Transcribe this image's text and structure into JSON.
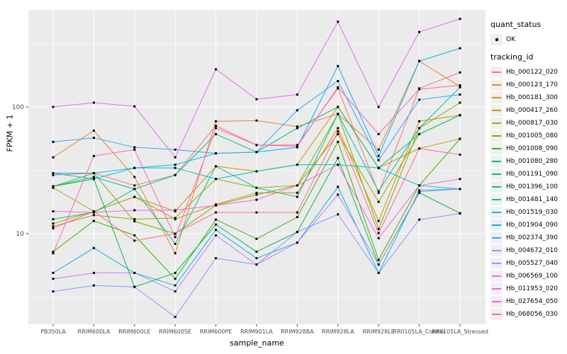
{
  "chart_data": {
    "type": "line",
    "title": "",
    "xlabel": "sample_name",
    "ylabel": "FPKM + 1",
    "y_scale": "log10",
    "y_major_ticks": [
      10,
      100
    ],
    "y_minor_gridlines": [
      3.162,
      31.62,
      316.2
    ],
    "grid": "white-on-grey",
    "legend_position": "right",
    "marker": "small-black-point",
    "categories": [
      "PB350LA",
      "RRIM600LA",
      "RRIM600LE",
      "RRIM600SE",
      "RRIM600PE",
      "RRIM901LA",
      "RRIM928BA",
      "RRIM928LA",
      "RRIM928LE",
      "RRII105LA_Control",
      "RRII105LA_Stressed"
    ],
    "series": [
      {
        "name": "Hb_000122_020",
        "color": "#F8766D",
        "values": [
          29,
          30,
          24,
          29,
          71,
          50,
          50,
          140,
          21,
          140,
          187
        ]
      },
      {
        "name": "Hb_000123_170",
        "color": "#E88526",
        "values": [
          40,
          65,
          28,
          7,
          77,
          78,
          70,
          88,
          46,
          230,
          145
        ]
      },
      {
        "name": "Hb_000181_300",
        "color": "#D89000",
        "values": [
          12,
          15,
          19.5,
          13,
          17,
          21,
          21,
          68,
          12.6,
          77,
          86
        ]
      },
      {
        "name": "Hb_000417_260",
        "color": "#C09B00",
        "values": [
          23,
          15,
          19.5,
          15,
          34,
          31,
          35,
          100,
          33,
          47,
          56
        ]
      },
      {
        "name": "Hb_000817_030",
        "color": "#A3A500",
        "values": [
          11.4,
          14,
          13,
          13.3,
          27,
          23,
          24,
          61,
          17.8,
          61,
          86
        ]
      },
      {
        "name": "Hb_001005_080",
        "color": "#7CAE00",
        "values": [
          23.6,
          30,
          12.5,
          10,
          16.7,
          20.3,
          24,
          88,
          10.9,
          68,
          108
        ]
      },
      {
        "name": "Hb_001008_090",
        "color": "#39B600",
        "values": [
          7.2,
          12.6,
          9.7,
          4.4,
          12.9,
          9.1,
          13.5,
          53,
          6.2,
          24,
          56
        ]
      },
      {
        "name": "Hb_001080_280",
        "color": "#00BB4E",
        "values": [
          23.6,
          27,
          3.8,
          4.9,
          11.8,
          7.2,
          10.3,
          39.5,
          5.7,
          21,
          14.5
        ]
      },
      {
        "name": "Hb_001191_090",
        "color": "#00BF7D",
        "values": [
          13,
          14.7,
          22.5,
          29,
          61,
          44,
          68,
          100,
          33,
          61,
          86
        ]
      },
      {
        "name": "Hb_001396_100",
        "color": "#00C1A3",
        "values": [
          23.6,
          28,
          22.5,
          8.3,
          34,
          23,
          19.5,
          88,
          21.6,
          68,
          143
        ]
      },
      {
        "name": "Hb_001481_140",
        "color": "#00BFC4",
        "values": [
          30,
          27,
          33,
          33,
          27,
          31,
          35,
          35,
          33,
          24,
          22.5
        ]
      },
      {
        "name": "Hb_001519_030",
        "color": "#00BAE0",
        "values": [
          4.9,
          7.7,
          4.9,
          3.9,
          10.7,
          6.4,
          8.5,
          23.4,
          4.9,
          22,
          22.5
        ]
      },
      {
        "name": "Hb_001904_090",
        "color": "#00B0F6",
        "values": [
          30,
          30,
          33,
          35,
          43,
          44,
          48,
          210,
          41,
          230,
          290
        ]
      },
      {
        "name": "Hb_002374_390",
        "color": "#35A2FF",
        "values": [
          53,
          57,
          48,
          46,
          43,
          44,
          94,
          160,
          38,
          114,
          125
        ]
      },
      {
        "name": "Hb_004672_010",
        "color": "#9590FF",
        "values": [
          3.5,
          3.9,
          3.8,
          2.2,
          6.4,
          5.7,
          10.3,
          14.2,
          4.9,
          12.9,
          14.4
        ]
      },
      {
        "name": "Hb_005527_040",
        "color": "#C77CFF",
        "values": [
          4.4,
          4.9,
          4.9,
          3.5,
          9.7,
          5.7,
          8.5,
          20.3,
          5.7,
          21.4,
          22.5
        ]
      },
      {
        "name": "Hb_006569_100",
        "color": "#E76BF3",
        "values": [
          100,
          108,
          101,
          40,
          198,
          115,
          125,
          470,
          100,
          390,
          495
        ]
      },
      {
        "name": "Hb_011953_020",
        "color": "#FA62DB",
        "values": [
          15,
          14.7,
          15.3,
          15.3,
          16.7,
          18.5,
          24,
          35,
          9.2,
          24,
          27
        ]
      },
      {
        "name": "Hb_027654_050",
        "color": "#FF62BC",
        "values": [
          7,
          41,
          46,
          9.4,
          68,
          50,
          49,
          143,
          61,
          138,
          148
        ]
      },
      {
        "name": "Hb_068056_030",
        "color": "#FF6A98",
        "values": [
          11,
          15,
          8.8,
          10,
          14.7,
          14.7,
          14.7,
          64,
          10.1,
          47,
          42
        ]
      }
    ]
  },
  "legend": {
    "quant_status_title": "quant_status",
    "quant_status_items": [
      {
        "label": "OK",
        "symbol": "black-point"
      }
    ],
    "tracking_title": "tracking_id"
  },
  "colors": {
    "panel_bg": "#EBEBEB",
    "gridline": "#FFFFFF",
    "axis_text": "#4D4D4D",
    "tick_mark": "#333333",
    "legend_key_bg": "#F0F0F0",
    "marker": "#000000"
  }
}
